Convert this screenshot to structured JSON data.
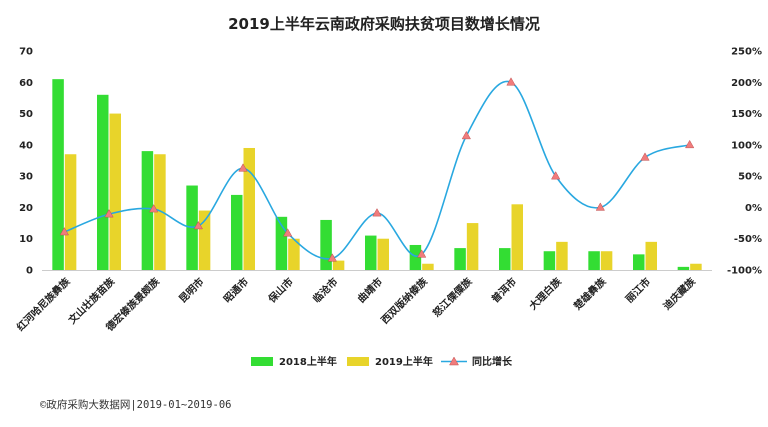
{
  "chart_data": {
    "type": "bar",
    "title": "2019上半年云南政府采购扶贫项目数增长情况",
    "categories": [
      "红河哈尼族彝族",
      "文山壮族苗族",
      "德宏傣族景颇族",
      "昆明市",
      "昭通市",
      "保山市",
      "临沧市",
      "曲靖市",
      "西双版纳傣族",
      "怒江傈僳族",
      "普洱市",
      "大理白族",
      "楚雄彝族",
      "丽江市",
      "迪庆藏族"
    ],
    "series": [
      {
        "name": "2018上半年",
        "type": "bar",
        "color": "#33dd33",
        "axis": "left",
        "values": [
          61,
          56,
          38,
          27,
          24,
          17,
          16,
          11,
          8,
          7,
          7,
          6,
          6,
          5,
          1
        ]
      },
      {
        "name": "2019上半年",
        "type": "bar",
        "color": "#e8d42a",
        "axis": "left",
        "values": [
          37,
          50,
          37,
          19,
          39,
          10,
          3,
          10,
          2,
          15,
          21,
          9,
          6,
          9,
          2
        ]
      },
      {
        "name": "同比增长",
        "type": "line",
        "color": "#29a8e0",
        "marker_color": "#f07c7c",
        "axis": "right",
        "values": [
          -39.3,
          -10.7,
          -2.6,
          -29.6,
          62.5,
          -41.2,
          -81.3,
          -9.1,
          -75.0,
          114.3,
          200.0,
          50.0,
          0.0,
          80.0,
          100.0
        ]
      }
    ],
    "left_axis": {
      "min": 0,
      "max": 70,
      "ticks": [
        "0",
        "10",
        "20",
        "30",
        "40",
        "50",
        "60",
        "70"
      ]
    },
    "right_axis": {
      "min": -100,
      "max": 250,
      "ticks": [
        "-100%",
        "-50%",
        "0%",
        "50%",
        "100%",
        "150%",
        "200%",
        "250%"
      ]
    },
    "grid": false,
    "legend_position": "bottom"
  },
  "source_text": "©政府采购大数据网|2019-01~2019-06"
}
